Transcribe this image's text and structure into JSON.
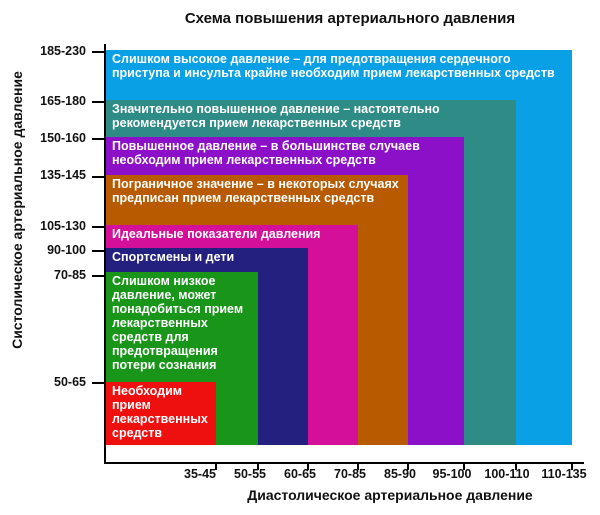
{
  "title": "Схема повышения артериального давления",
  "y_axis_label": "Систолическое артериальное давление",
  "x_axis_label": "Диастолическое артериальное давление",
  "y_ticks": [
    "185-230",
    "165-180",
    "150-160",
    "135-145",
    "105-130",
    "90-100",
    "70-85",
    "50-65"
  ],
  "x_ticks": [
    "35-45",
    "50-55",
    "60-65",
    "70-85",
    "85-90",
    "95-100",
    "100-110",
    "110-135"
  ],
  "blocks": [
    {
      "id": "very-high",
      "color": "#0aa0e6",
      "text": "Слишком высокое давление – для предотвращения сердечного приступа и инсульта крайне необходим прием лекарственных средств"
    },
    {
      "id": "significantly-high",
      "color": "#2e8b86",
      "text": "Значительно повышенное давление – настоятельно рекомендуется прием лекарственных средств"
    },
    {
      "id": "high",
      "color": "#8c10c8",
      "text": "Повышенное давление – в большинстве случаев необходим прием лекарственных средств"
    },
    {
      "id": "borderline",
      "color": "#b85a00",
      "text": "Пограничное значение – в некоторых случаях предписан прием лекарственных средств"
    },
    {
      "id": "ideal",
      "color": "#d40f9a",
      "text": "Идеальные показатели давления"
    },
    {
      "id": "athletes-children",
      "color": "#242080",
      "text": "Спортсмены и дети"
    },
    {
      "id": "too-low",
      "color": "#19951a",
      "text": "Слишком низкое давление, может понадобиться прием лекарственных средств для предотвращения потери сознания"
    },
    {
      "id": "medication-needed",
      "color": "#ee0f0f",
      "text": "Необходим прием лекарственных средств"
    }
  ]
}
